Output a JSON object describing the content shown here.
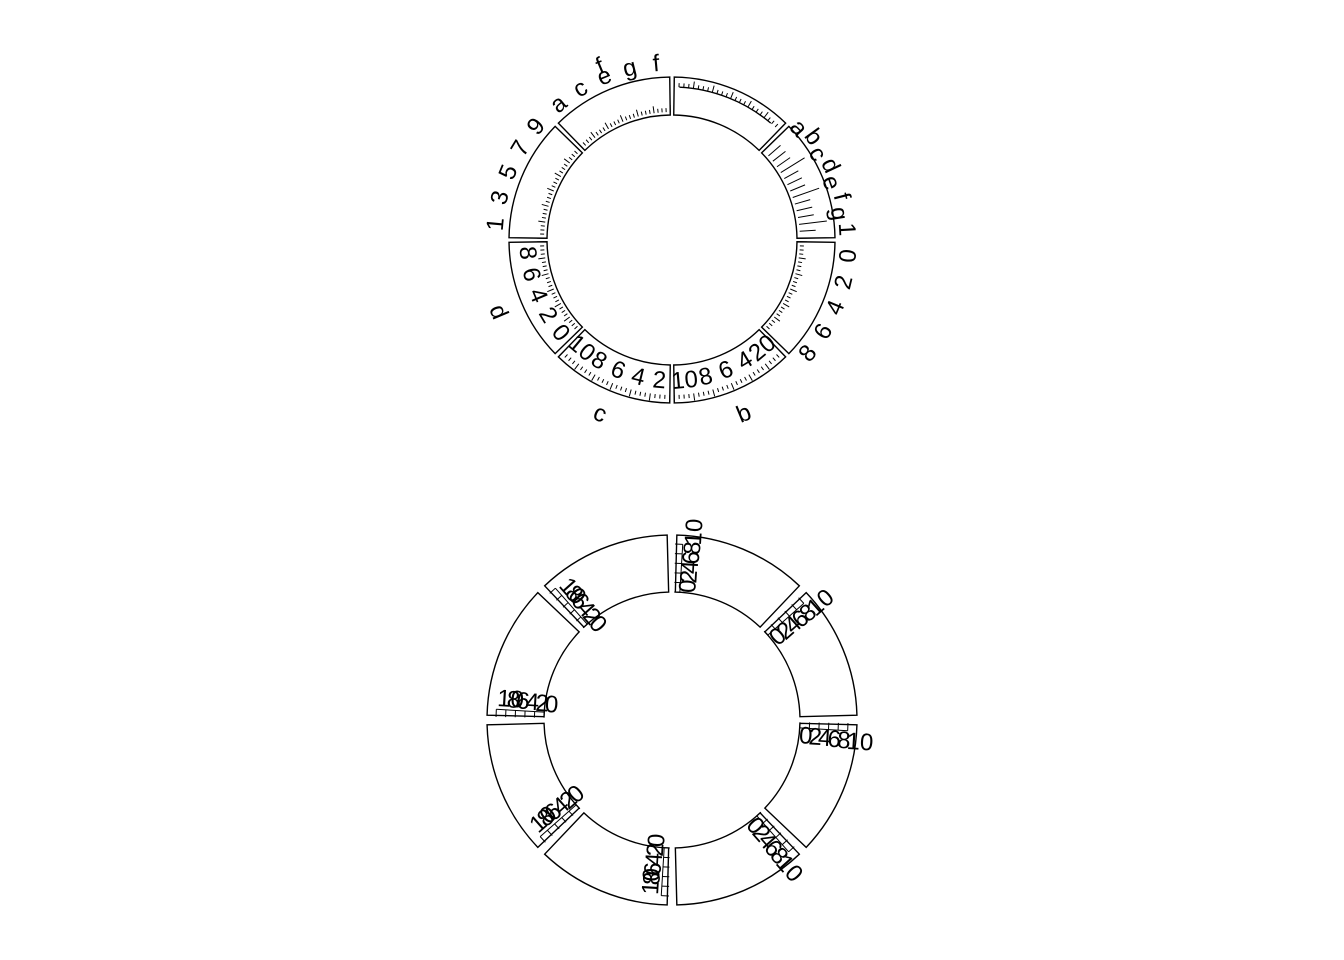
{
  "chart_data": [
    {
      "type": "circos",
      "sectors": [
        {
          "name": "a",
          "kind": "letter_axis",
          "labels": [
            "",
            "",
            "",
            "",
            "",
            "",
            "",
            ""
          ],
          "sector_label": ""
        },
        {
          "name": "e",
          "kind": "letter_axis",
          "labels": [
            "a",
            "b",
            "c",
            "d",
            "e",
            "f",
            "g",
            "1"
          ],
          "sector_label": ""
        },
        {
          "name": "b2",
          "kind": "number_axis",
          "labels": [
            "0",
            "2",
            "4",
            "6",
            "8"
          ],
          "sector_label": ""
        },
        {
          "name": "b",
          "kind": "number_axis",
          "labels": [
            "20",
            "4",
            "6",
            "8",
            "10"
          ],
          "sector_label": "b"
        },
        {
          "name": "c",
          "kind": "number_axis",
          "labels": [
            "2",
            "4",
            "6",
            "8",
            "10"
          ],
          "sector_label": "c"
        },
        {
          "name": "d",
          "kind": "number_axis",
          "labels": [
            "0",
            "2",
            "4",
            "6",
            "8"
          ],
          "sector_label": "d"
        },
        {
          "name": "g",
          "kind": "number_axis",
          "labels": [
            "1",
            "3",
            "5",
            "7",
            "9"
          ],
          "sector_label": ""
        },
        {
          "name": "f",
          "kind": "letter_axis",
          "labels": [
            "a",
            "c",
            "e",
            "g",
            "f"
          ],
          "sector_label": "f"
        }
      ]
    },
    {
      "type": "circos",
      "sectors": [
        {
          "tick_labels": [
            "0",
            "2",
            "4",
            "6",
            "8",
            "10"
          ]
        },
        {
          "tick_labels": [
            "0",
            "2",
            "4",
            "6",
            "8",
            "10"
          ]
        },
        {
          "tick_labels": [
            "0",
            "2",
            "4",
            "6",
            "8",
            "10"
          ]
        },
        {
          "tick_labels": [
            "0",
            "2",
            "4",
            "6",
            "8",
            "10"
          ]
        },
        {
          "tick_labels": [
            "0",
            "2",
            "4",
            "6",
            "8",
            "10"
          ]
        },
        {
          "tick_labels": [
            "0",
            "2",
            "4",
            "6",
            "8",
            "10"
          ]
        },
        {
          "tick_labels": [
            "0",
            "2",
            "4",
            "6",
            "8",
            "10"
          ]
        },
        {
          "tick_labels": [
            "0",
            "2",
            "4",
            "6",
            "8",
            "10"
          ]
        }
      ]
    }
  ]
}
